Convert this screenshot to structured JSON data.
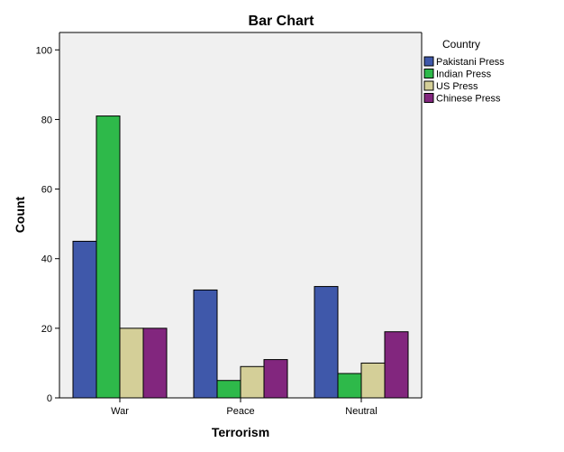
{
  "chart_data": {
    "type": "bar",
    "title": "Bar Chart",
    "xlabel": "Terrorism",
    "ylabel": "Count",
    "categories": [
      "War",
      "Peace",
      "Neutral"
    ],
    "ylim": [
      0,
      105
    ],
    "yticks": [
      0,
      20,
      40,
      60,
      80,
      100
    ],
    "grid": false,
    "legend": {
      "title": "Country",
      "placement": "right"
    },
    "plot_background": "#f0f0f0",
    "series": [
      {
        "name": "Pakistani Press",
        "color": "#3f58aa",
        "values": [
          45,
          31,
          32
        ]
      },
      {
        "name": "Indian Press",
        "color": "#2eb94a",
        "values": [
          81,
          5,
          7
        ]
      },
      {
        "name": "US Press",
        "color": "#d4cf98",
        "values": [
          20,
          9,
          10
        ]
      },
      {
        "name": "Chinese Press",
        "color": "#82267e",
        "values": [
          20,
          11,
          19
        ]
      }
    ]
  }
}
